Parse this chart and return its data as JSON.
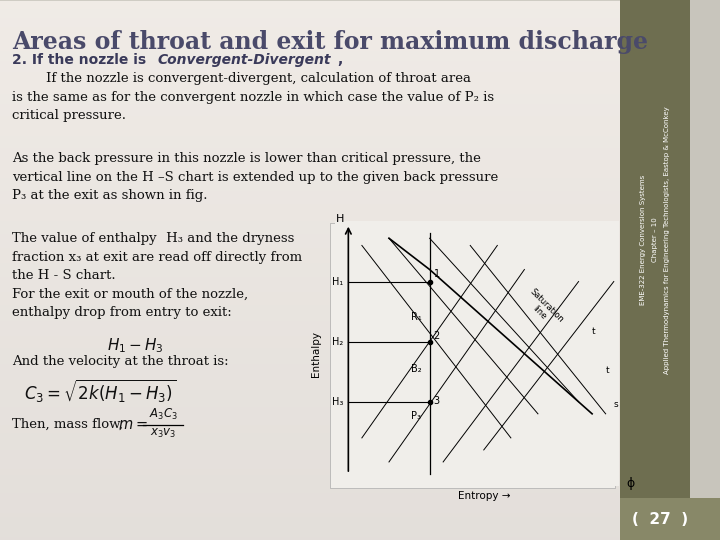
{
  "bg_color_top": "#e8e6e2",
  "bg_color_bottom": "#c8c5bc",
  "sidebar_color": "#7a7a5a",
  "sidebar_bottom_color": "#888870",
  "title": "Areas of throat and exit for maximum discharge",
  "title_color": "#4a4a6a",
  "title_fontsize": 17,
  "subtitle_color": "#3a3a5a",
  "body_fontsize": 9.5,
  "text_color": "#111111",
  "sidebar_texts": [
    "EME-322 Energy Conversion Systems",
    "Chapter – 10",
    "Applied Thermodynamics for Engineering Technologists, Eastop & McConkey"
  ],
  "page_number": "27"
}
